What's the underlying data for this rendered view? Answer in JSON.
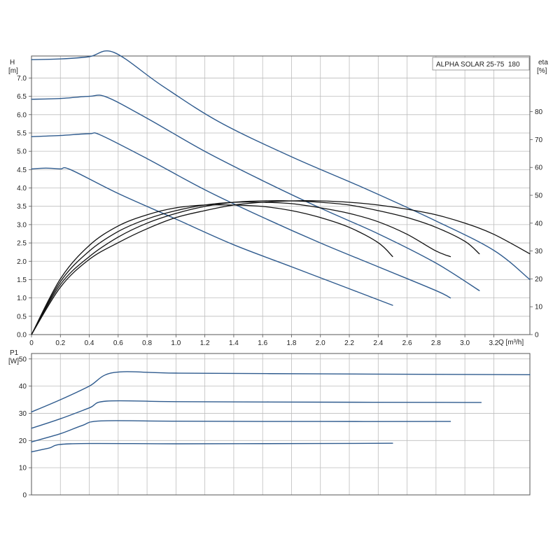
{
  "chart_data": [
    {
      "type": "line",
      "title": "ALPHA SOLAR 25-75  180",
      "ylabel": "H",
      "yunit": "[m]",
      "y2label": "eta",
      "y2unit": "[%]",
      "xlabel": "Q [m³/h]",
      "xlim": [
        0,
        3.45
      ],
      "ylim": [
        0,
        7.6
      ],
      "y2lim": [
        0,
        100
      ],
      "grid": true,
      "legend": "top-right",
      "x_ticks": [
        "0",
        "0.2",
        "0.4",
        "0.6",
        "0.8",
        "1.0",
        "1.2",
        "1.4",
        "1.6",
        "1.8",
        "2.0",
        "2.2",
        "2.4",
        "2.6",
        "2.8",
        "3.0",
        "3.2"
      ],
      "y_ticks": [
        "0.0",
        "0.5",
        "1.0",
        "1.5",
        "2.0",
        "2.5",
        "3.0",
        "3.5",
        "4.0",
        "4.5",
        "5.0",
        "5.5",
        "6.0",
        "6.5",
        "7.0"
      ],
      "y2_ticks": [
        "0",
        "10",
        "20",
        "30",
        "40",
        "50",
        "60",
        "70",
        "80"
      ],
      "series": [
        {
          "axis": "H",
          "x": [
            0,
            0.2,
            0.4,
            0.57,
            0.9,
            1.3,
            1.8,
            2.3,
            2.8,
            3.2,
            3.45
          ],
          "y": [
            7.5,
            7.52,
            7.58,
            7.7,
            6.8,
            5.8,
            4.85,
            4.0,
            3.1,
            2.3,
            1.5
          ]
        },
        {
          "axis": "H",
          "x": [
            0,
            0.2,
            0.4,
            0.52,
            0.8,
            1.2,
            1.6,
            2.0,
            2.4,
            2.8,
            3.1
          ],
          "y": [
            6.42,
            6.44,
            6.5,
            6.48,
            5.9,
            5.0,
            4.2,
            3.45,
            2.75,
            1.95,
            1.2
          ]
        },
        {
          "axis": "H",
          "x": [
            0,
            0.2,
            0.4,
            0.48,
            0.8,
            1.2,
            1.6,
            2.0,
            2.4,
            2.8,
            2.9
          ],
          "y": [
            5.4,
            5.43,
            5.48,
            5.44,
            4.8,
            3.95,
            3.2,
            2.5,
            1.85,
            1.2,
            1.0
          ]
        },
        {
          "axis": "H",
          "x": [
            0,
            0.1,
            0.2,
            0.27,
            0.6,
            1.0,
            1.4,
            1.8,
            2.2,
            2.5
          ],
          "y": [
            4.52,
            4.54,
            4.52,
            4.5,
            3.85,
            3.15,
            2.45,
            1.85,
            1.25,
            0.8
          ]
        },
        {
          "axis": "eta",
          "x": [
            0,
            0.2,
            0.4,
            0.6,
            0.8,
            1.0,
            1.2,
            1.4,
            1.6,
            1.8,
            2.0,
            2.2,
            2.4,
            2.6,
            2.8,
            3.0,
            3.2,
            3.45
          ],
          "y": [
            0,
            17,
            27,
            33,
            38,
            42,
            44.5,
            46.5,
            47.5,
            48,
            48,
            47.5,
            46.5,
            45,
            43,
            40,
            36,
            29
          ]
        },
        {
          "axis": "eta",
          "x": [
            0,
            0.2,
            0.4,
            0.6,
            0.8,
            1.0,
            1.2,
            1.4,
            1.6,
            1.8,
            2.0,
            2.2,
            2.4,
            2.6,
            2.8,
            3.0,
            3.1
          ],
          "y": [
            0,
            18,
            28,
            35,
            40,
            43.5,
            46,
            47.5,
            48,
            48,
            47.5,
            46.5,
            44.5,
            42,
            38.5,
            33.5,
            29
          ]
        },
        {
          "axis": "eta",
          "x": [
            0,
            0.2,
            0.4,
            0.6,
            0.8,
            1.0,
            1.2,
            1.4,
            1.6,
            1.8,
            2.0,
            2.2,
            2.4,
            2.6,
            2.8,
            2.9
          ],
          "y": [
            0,
            19,
            30,
            37,
            41.5,
            44.5,
            46.5,
            47.5,
            47.5,
            47,
            45.5,
            43.5,
            40.5,
            36,
            30,
            28
          ]
        },
        {
          "axis": "eta",
          "x": [
            0,
            0.2,
            0.4,
            0.6,
            0.8,
            1.0,
            1.2,
            1.4,
            1.6,
            1.8,
            2.0,
            2.2,
            2.4,
            2.5
          ],
          "y": [
            0,
            20,
            32,
            39,
            43,
            45.5,
            46.5,
            46.5,
            46,
            44.5,
            42,
            38.5,
            33,
            28
          ]
        }
      ]
    },
    {
      "type": "line",
      "ylabel": "P1",
      "yunit": "[W]",
      "xlim": [
        0,
        3.45
      ],
      "ylim": [
        0,
        52
      ],
      "grid": true,
      "y_ticks": [
        "0",
        "10",
        "20",
        "30",
        "40",
        "50"
      ],
      "series": [
        {
          "x": [
            0,
            0.2,
            0.4,
            0.57,
            1.0,
            2.0,
            3.0,
            3.45
          ],
          "y": [
            30.5,
            35,
            40,
            45,
            44.8,
            44.5,
            44.3,
            44.2
          ]
        },
        {
          "x": [
            0,
            0.2,
            0.4,
            0.52,
            1.0,
            2.0,
            3.0,
            3.1
          ],
          "y": [
            24.5,
            28,
            32,
            34.5,
            34.3,
            34.1,
            34.0,
            34.0
          ]
        },
        {
          "x": [
            0,
            0.2,
            0.35,
            0.48,
            1.0,
            2.0,
            2.9
          ],
          "y": [
            19.5,
            22.5,
            25.5,
            27.2,
            27.1,
            27.0,
            27.0
          ]
        },
        {
          "x": [
            0,
            0.12,
            0.27,
            1.0,
            2.0,
            2.5
          ],
          "y": [
            15.8,
            17.2,
            18.8,
            18.8,
            18.9,
            19.0
          ]
        }
      ]
    }
  ],
  "colors": {
    "head_curve": "#2f5b8e",
    "eta_curve": "#111111",
    "power_curve": "#2f5b8e",
    "grid": "#bdbdbd",
    "frame": "#555555"
  }
}
